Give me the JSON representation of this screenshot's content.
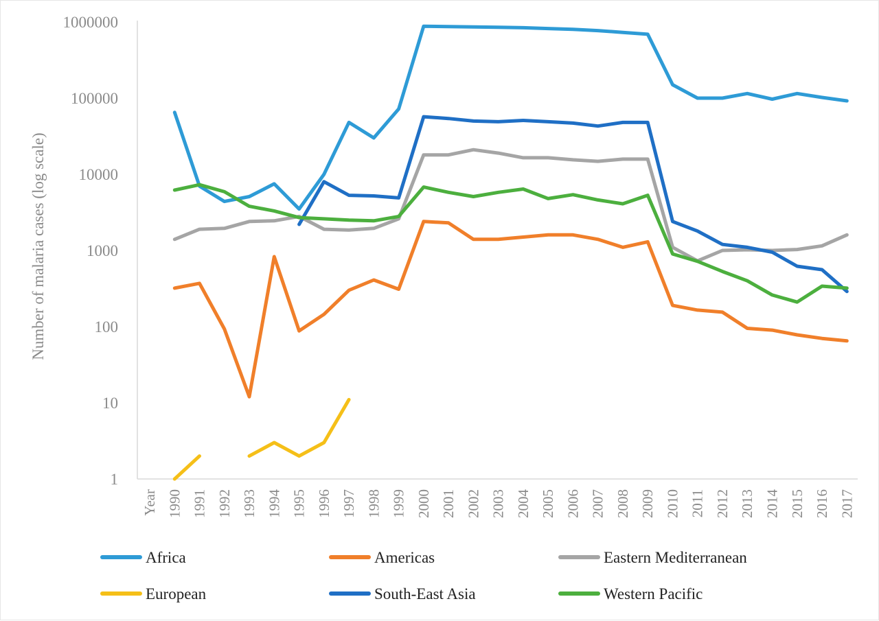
{
  "chart_data": {
    "type": "line",
    "title": "",
    "xlabel": "",
    "ylabel": "Number of malaria cases (log scale)",
    "yscale": "log",
    "ylim": [
      1,
      1000000
    ],
    "y_ticks": [
      "1",
      "10",
      "100",
      "1000",
      "10000",
      "100000",
      "1000000"
    ],
    "y_tick_values": [
      1,
      10,
      100,
      1000,
      10000,
      100000,
      1000000
    ],
    "grid": false,
    "legend_position": "bottom",
    "x_axis_first_label": "Year",
    "x": [
      1990,
      1991,
      1992,
      1993,
      1994,
      1995,
      1996,
      1997,
      1998,
      1999,
      2000,
      2001,
      2002,
      2003,
      2004,
      2005,
      2006,
      2007,
      2008,
      2009,
      2010,
      2011,
      2012,
      2013,
      2014,
      2015,
      2016,
      2017
    ],
    "series": [
      {
        "name": "Africa",
        "color": "#2e9bd6",
        "values": [
          65000,
          7000,
          4400,
          5100,
          7500,
          3500,
          10000,
          48000,
          30000,
          72000,
          880000,
          870000,
          860000,
          850000,
          840000,
          820000,
          800000,
          770000,
          730000,
          690000,
          150000,
          100000,
          100000,
          115000,
          97000,
          115000,
          102000,
          92000
        ]
      },
      {
        "name": "Americas",
        "color": "#f07f2a",
        "values": [
          320,
          370,
          93,
          12,
          830,
          88,
          145,
          300,
          410,
          310,
          2400,
          2300,
          1400,
          1400,
          1500,
          1600,
          1600,
          1400,
          1100,
          1300,
          190,
          165,
          155,
          95,
          90,
          78,
          70,
          65
        ]
      },
      {
        "name": "Eastern Mediterranean",
        "color": "#a5a5a5",
        "values": [
          1400,
          1900,
          1950,
          2400,
          2450,
          2800,
          1900,
          1850,
          1950,
          2600,
          18000,
          18000,
          21000,
          19000,
          16500,
          16500,
          15500,
          14800,
          15800,
          15800,
          1100,
          730,
          1000,
          1020,
          1000,
          1030,
          1150,
          1600
        ]
      },
      {
        "name": "European",
        "color": "#f5bf18",
        "values": [
          1,
          2,
          null,
          2,
          3,
          2,
          3,
          11,
          null,
          null,
          null,
          null,
          null,
          null,
          null,
          null,
          null,
          null,
          null,
          null,
          null,
          null,
          null,
          null,
          null,
          null,
          null,
          null
        ]
      },
      {
        "name": "South-East Asia",
        "color": "#1f6fc5",
        "values": [
          null,
          null,
          null,
          null,
          null,
          2200,
          8000,
          5300,
          5200,
          4900,
          57000,
          54000,
          50000,
          49000,
          51000,
          49000,
          47000,
          43000,
          48000,
          48000,
          2400,
          1800,
          1200,
          1100,
          950,
          620,
          560,
          290
        ]
      },
      {
        "name": "Western Pacific",
        "color": "#4caf3e",
        "values": [
          6200,
          7300,
          5900,
          3800,
          3300,
          2700,
          2600,
          2500,
          2450,
          2800,
          6800,
          5800,
          5100,
          5800,
          6400,
          4800,
          5400,
          4600,
          4100,
          5300,
          900,
          720,
          530,
          400,
          260,
          210,
          340,
          320
        ]
      }
    ]
  }
}
